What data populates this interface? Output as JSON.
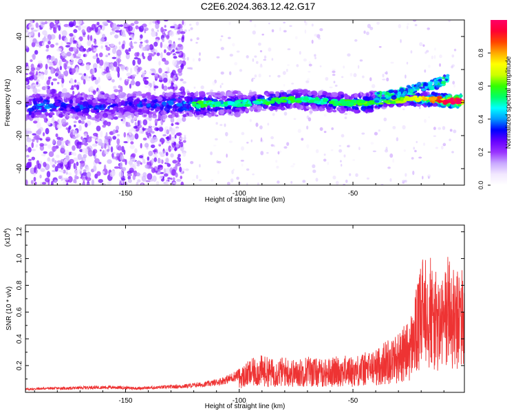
{
  "page": {
    "title": "C2E6.2024.363.12.42.G17"
  },
  "colors": {
    "snr_line": "#ee3333",
    "colormap": [
      "#ffffff",
      "#f2e8ff",
      "#c9a8ff",
      "#9933ff",
      "#6600ff",
      "#0000ff",
      "#0099ff",
      "#00ffff",
      "#00ff66",
      "#33ff00",
      "#ccff00",
      "#ffff00",
      "#ffaa00",
      "#ff4400",
      "#ff0033",
      "#ff0066"
    ]
  },
  "chart_data": [
    {
      "type": "heatmap",
      "title": "C2E6.2024.363.12.42.G17",
      "xlabel": "Height of straight line (km)",
      "ylabel": "Frequency (Hz)",
      "xlim": [
        -194,
        -1
      ],
      "ylim": [
        -50,
        50
      ],
      "xticks": [
        -150,
        -100,
        -50
      ],
      "yticks": [
        -40,
        -20,
        0,
        20,
        40
      ],
      "colorbar": {
        "label": "Normalized spectral amplitude",
        "range": [
          0,
          1
        ],
        "ticks": [
          "0.0",
          "0.2",
          "0.4",
          "0.6",
          "0.8"
        ],
        "tick_values": [
          0,
          0.2,
          0.4,
          0.6,
          0.8
        ]
      },
      "trace": [
        {
          "x": -192,
          "f": -3,
          "a": 0.35
        },
        {
          "x": -185,
          "f": -2,
          "a": 0.4
        },
        {
          "x": -175,
          "f": -2,
          "a": 0.3
        },
        {
          "x": -165,
          "f": -3,
          "a": 0.35
        },
        {
          "x": -155,
          "f": -2,
          "a": 0.3
        },
        {
          "x": -145,
          "f": -1,
          "a": 0.3
        },
        {
          "x": -135,
          "f": -2,
          "a": 0.35
        },
        {
          "x": -125,
          "f": -1,
          "a": 0.4
        },
        {
          "x": -115,
          "f": -1,
          "a": 0.4
        },
        {
          "x": -105,
          "f": -1,
          "a": 0.35
        },
        {
          "x": -95,
          "f": 0,
          "a": 0.35
        },
        {
          "x": -85,
          "f": 1,
          "a": 0.4
        },
        {
          "x": -75,
          "f": 2,
          "a": 0.4
        },
        {
          "x": -65,
          "f": 1,
          "a": 0.35
        },
        {
          "x": -55,
          "f": 0,
          "a": 0.4
        },
        {
          "x": -45,
          "f": 0,
          "a": 0.45
        },
        {
          "x": -35,
          "f": 1,
          "a": 0.45
        },
        {
          "x": -25,
          "f": 2,
          "a": 0.5
        },
        {
          "x": -15,
          "f": 2,
          "a": 0.65
        },
        {
          "x": -8,
          "f": 1,
          "a": 0.85
        },
        {
          "x": -3,
          "f": 1,
          "a": 0.95
        }
      ],
      "upper_branch": [
        {
          "x": -40,
          "f": 3
        },
        {
          "x": -30,
          "f": 6
        },
        {
          "x": -20,
          "f": 9
        },
        {
          "x": -12,
          "f": 12
        },
        {
          "x": -8,
          "f": 15
        }
      ]
    },
    {
      "type": "line",
      "xlabel": "Height of straight line (km)",
      "ylabel": "SNR (10 * v/v)",
      "y_multiplier": "(x10",
      "y_multiplier_exp": "4",
      "y_multiplier_close": ")",
      "xlim": [
        -194,
        -1
      ],
      "ylim": [
        0,
        1.25
      ],
      "xticks": [
        -150,
        -100,
        -50
      ],
      "yticks": [
        "0.2",
        "0.4",
        "0.6",
        "0.8",
        "1.0",
        "1.2"
      ],
      "ytick_values": [
        0.2,
        0.4,
        0.6,
        0.8,
        1.0,
        1.2
      ],
      "series": [
        {
          "x": [
            -194,
            -185,
            -175,
            -165,
            -155,
            -145,
            -135,
            -125,
            -115,
            -110,
            -105,
            -100,
            -95,
            -90,
            -85,
            -80,
            -75,
            -70,
            -65,
            -60,
            -55,
            -50,
            -45,
            -40,
            -35,
            -30,
            -25,
            -22,
            -20,
            -18,
            -15,
            -12,
            -10,
            -8,
            -5,
            -3,
            -1
          ],
          "y": [
            0.03,
            0.04,
            0.04,
            0.05,
            0.05,
            0.04,
            0.05,
            0.06,
            0.08,
            0.1,
            0.13,
            0.18,
            0.25,
            0.28,
            0.25,
            0.27,
            0.24,
            0.28,
            0.25,
            0.26,
            0.28,
            0.27,
            0.3,
            0.32,
            0.4,
            0.45,
            0.55,
            0.8,
            0.95,
            1.25,
            0.95,
            0.85,
            0.9,
            1.1,
            0.85,
            1.0,
            0.9
          ]
        }
      ]
    }
  ]
}
